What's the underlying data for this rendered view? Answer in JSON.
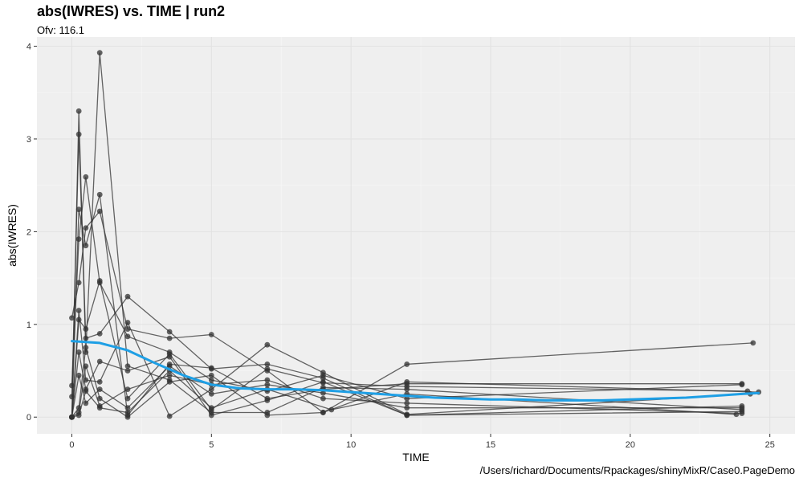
{
  "chart_data": {
    "type": "scatter",
    "title": "abs(IWRES) vs. TIME  | run2",
    "subtitle": "Ofv: 116.1",
    "caption": "/Users/richard/Documents/Rpackages/shinyMixR/Case0.PageDemo",
    "xlabel": "TIME",
    "ylabel": "abs(IWRES)",
    "xlim": [
      -1.25,
      25.9
    ],
    "ylim": [
      -0.18,
      4.1
    ],
    "xticks": [
      0,
      5,
      10,
      15,
      20,
      25
    ],
    "yticks": [
      0,
      1,
      2,
      3,
      4
    ],
    "grid": true,
    "colors": {
      "points": "#333333",
      "lines": "#333333",
      "smooth": "#1e9fe5",
      "panel": "#efefef",
      "grid": "#ffffff"
    },
    "series": [
      {
        "x": [
          0,
          0.25,
          0.5,
          1,
          2,
          3.5,
          5,
          7,
          9,
          12,
          24
        ],
        "y": [
          0,
          3.3,
          0.7,
          3.93,
          0.55,
          0.4,
          0.05,
          0.05,
          0.32,
          0.3,
          0.08
        ]
      },
      {
        "x": [
          0,
          0.25,
          0.5,
          1,
          2,
          3.5,
          5,
          7,
          9,
          12,
          24
        ],
        "y": [
          0.22,
          3.05,
          0.85,
          0.9,
          1.3,
          0.92,
          0.52,
          0.57,
          0.42,
          0.02,
          0.12
        ]
      },
      {
        "x": [
          0,
          0.25,
          0.5,
          1,
          2,
          3.5,
          5,
          7,
          9,
          12,
          24
        ],
        "y": [
          0.34,
          1.92,
          2.59,
          1.45,
          0.87,
          0.7,
          0.4,
          0.28,
          0.45,
          0.2,
          0.35
        ]
      },
      {
        "x": [
          0,
          0.25,
          0.5,
          1,
          2,
          3.5,
          5,
          7,
          9,
          12,
          24
        ],
        "y": [
          0,
          2.24,
          1.85,
          2.4,
          0.02,
          0.57,
          0.53,
          0.2,
          0.3,
          0.36,
          0.36
        ]
      },
      {
        "x": [
          0,
          0.25,
          0.5,
          1,
          2,
          3.5,
          5,
          7,
          9,
          12,
          24.4
        ],
        "y": [
          1.07,
          1.45,
          2.04,
          2.22,
          0.95,
          0.85,
          0.89,
          0.5,
          0.05,
          0.57,
          0.8
        ]
      },
      {
        "x": [
          0,
          0.25,
          0.5,
          1,
          2,
          3.5,
          5,
          7,
          9,
          12,
          24.3
        ],
        "y": [
          0,
          1.15,
          0.4,
          0.38,
          1.02,
          0.01,
          0.3,
          0.78,
          0.48,
          0.03,
          0.25
        ]
      },
      {
        "x": [
          0,
          0.25,
          0.5,
          1,
          2,
          3.5,
          5,
          7,
          9,
          12,
          24.2
        ],
        "y": [
          0,
          1.05,
          0.95,
          1.47,
          0.2,
          0.68,
          0.08,
          0.52,
          0.37,
          0.33,
          0.28
        ]
      },
      {
        "x": [
          0,
          0.25,
          0.5,
          1,
          2,
          3.5,
          5,
          7,
          9,
          12,
          24
        ],
        "y": [
          0,
          0.7,
          0.3,
          0.6,
          0.5,
          0.65,
          0.02,
          0.18,
          0.38,
          0.02,
          0.06
        ]
      },
      {
        "x": [
          0,
          0.25,
          0.5,
          1,
          2,
          3.5,
          5,
          7,
          9,
          12,
          24
        ],
        "y": [
          0,
          0.45,
          0.15,
          0.3,
          0.1,
          0.55,
          0.25,
          0.35,
          0.26,
          0.1,
          0.1
        ]
      },
      {
        "x": [
          0,
          0.25,
          0.5,
          1,
          2,
          3.5,
          5,
          7,
          9,
          12,
          24.6
        ],
        "y": [
          0,
          0.1,
          0.75,
          0.2,
          0,
          0.38,
          0.45,
          0.02,
          0.05,
          0.38,
          0.27
        ]
      },
      {
        "x": [
          0,
          0.25,
          0.5,
          1,
          2,
          3.5,
          5,
          7,
          9,
          12,
          24
        ],
        "y": [
          0,
          0.05,
          0.55,
          0.12,
          0.3,
          0.45,
          0.35,
          0.4,
          0.2,
          0.15,
          0.04
        ]
      },
      {
        "x": [
          0,
          0.25,
          0.5,
          1,
          2,
          3.5,
          5,
          7,
          9.3,
          12,
          23.8
        ],
        "y": [
          0,
          0.02,
          0.28,
          0.1,
          0.05,
          0.5,
          0.1,
          0.3,
          0.08,
          0.25,
          0.03
        ]
      }
    ],
    "smooth": {
      "x": [
        0,
        1,
        2,
        3,
        4,
        5,
        6,
        7,
        8,
        9,
        10,
        11,
        12,
        13,
        14,
        15,
        16,
        17,
        18,
        19,
        20,
        21,
        22,
        23,
        24,
        24.6
      ],
      "y": [
        0.82,
        0.8,
        0.72,
        0.58,
        0.45,
        0.35,
        0.31,
        0.3,
        0.3,
        0.29,
        0.27,
        0.25,
        0.23,
        0.21,
        0.2,
        0.19,
        0.19,
        0.18,
        0.18,
        0.18,
        0.19,
        0.2,
        0.21,
        0.23,
        0.25,
        0.26
      ]
    }
  }
}
